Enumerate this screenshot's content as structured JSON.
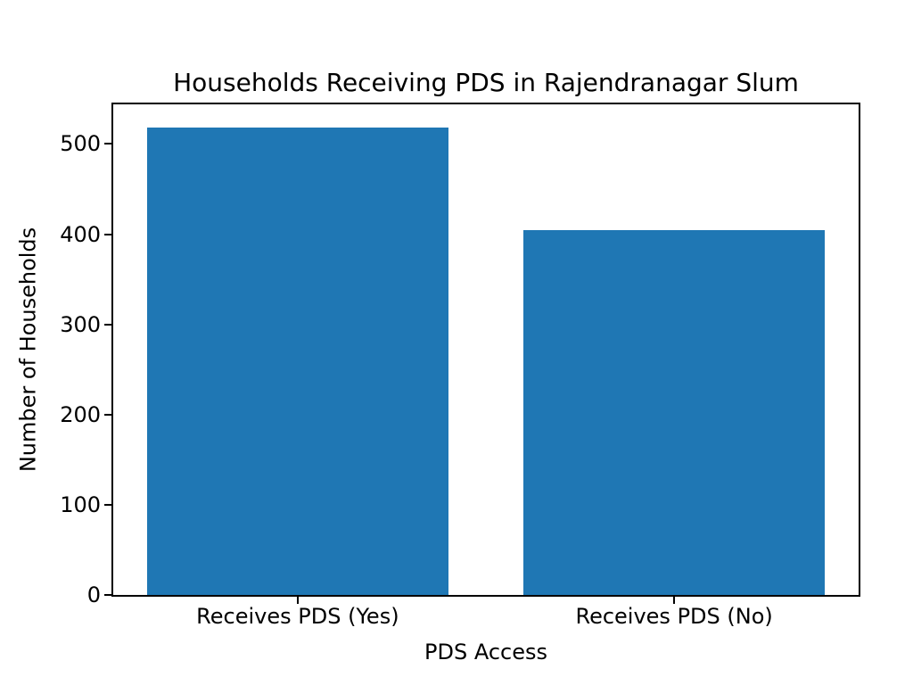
{
  "figure": {
    "background": "#ffffff"
  },
  "chart_data": {
    "type": "bar",
    "title": "Households Receiving PDS in Rajendranagar Slum",
    "xlabel": "PDS Access",
    "ylabel": "Number of Households",
    "categories": [
      "Receives PDS (Yes)",
      "Receives PDS (No)"
    ],
    "values": [
      518,
      405
    ],
    "yticks": [
      0,
      100,
      200,
      300,
      400,
      500
    ],
    "ylim": [
      0,
      544
    ],
    "bar_color": "#1f77b4",
    "bar_width_fraction": 0.8,
    "grid": false,
    "legend": "none",
    "text_color": "#000000",
    "spine_color": "#000000"
  }
}
